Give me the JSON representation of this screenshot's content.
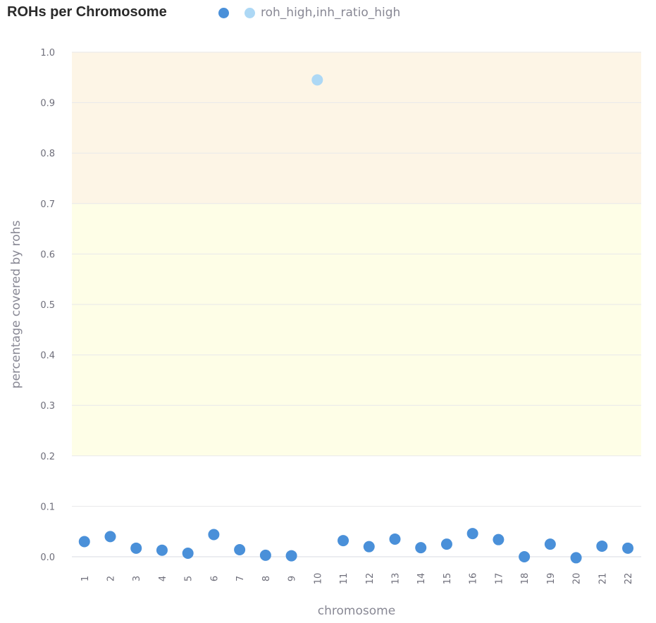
{
  "chart_data": {
    "type": "scatter",
    "title": "ROHs per Chromosome",
    "xlabel": "chromosome",
    "ylabel": "percentage covered by rohs",
    "categories": [
      "1",
      "2",
      "3",
      "4",
      "5",
      "6",
      "7",
      "8",
      "9",
      "10",
      "11",
      "12",
      "13",
      "14",
      "15",
      "16",
      "17",
      "18",
      "19",
      "20",
      "21",
      "22"
    ],
    "ylim": [
      0.0,
      1.0
    ],
    "yticks": [
      "1.0",
      "0.9",
      "0.8",
      "0.7",
      "0.6",
      "0.5",
      "0.4",
      "0.3",
      "0.2",
      "0.1",
      "0.0"
    ],
    "grid": true,
    "legend_position": "top",
    "bands": [
      {
        "from": 0.7,
        "to": 1.0,
        "color": "#fdf5e6"
      },
      {
        "from": 0.2,
        "to": 0.7,
        "color": "#fefee7"
      }
    ],
    "series": [
      {
        "name": "",
        "color": "#4a90d9",
        "points": [
          {
            "x": "1",
            "y": 0.03
          },
          {
            "x": "2",
            "y": 0.04
          },
          {
            "x": "3",
            "y": 0.017
          },
          {
            "x": "4",
            "y": 0.013
          },
          {
            "x": "5",
            "y": 0.007
          },
          {
            "x": "6",
            "y": 0.044
          },
          {
            "x": "7",
            "y": 0.014
          },
          {
            "x": "8",
            "y": 0.003
          },
          {
            "x": "9",
            "y": 0.002
          },
          {
            "x": "11",
            "y": 0.032
          },
          {
            "x": "12",
            "y": 0.02
          },
          {
            "x": "13",
            "y": 0.035
          },
          {
            "x": "14",
            "y": 0.018
          },
          {
            "x": "15",
            "y": 0.025
          },
          {
            "x": "16",
            "y": 0.046
          },
          {
            "x": "17",
            "y": 0.034
          },
          {
            "x": "18",
            "y": 0.0
          },
          {
            "x": "19",
            "y": 0.025
          },
          {
            "x": "20",
            "y": -0.002
          },
          {
            "x": "21",
            "y": 0.021
          },
          {
            "x": "22",
            "y": 0.017
          }
        ]
      },
      {
        "name": "roh_high,inh_ratio_high",
        "color": "#add8f5",
        "points": [
          {
            "x": "10",
            "y": 0.945
          }
        ]
      }
    ]
  }
}
